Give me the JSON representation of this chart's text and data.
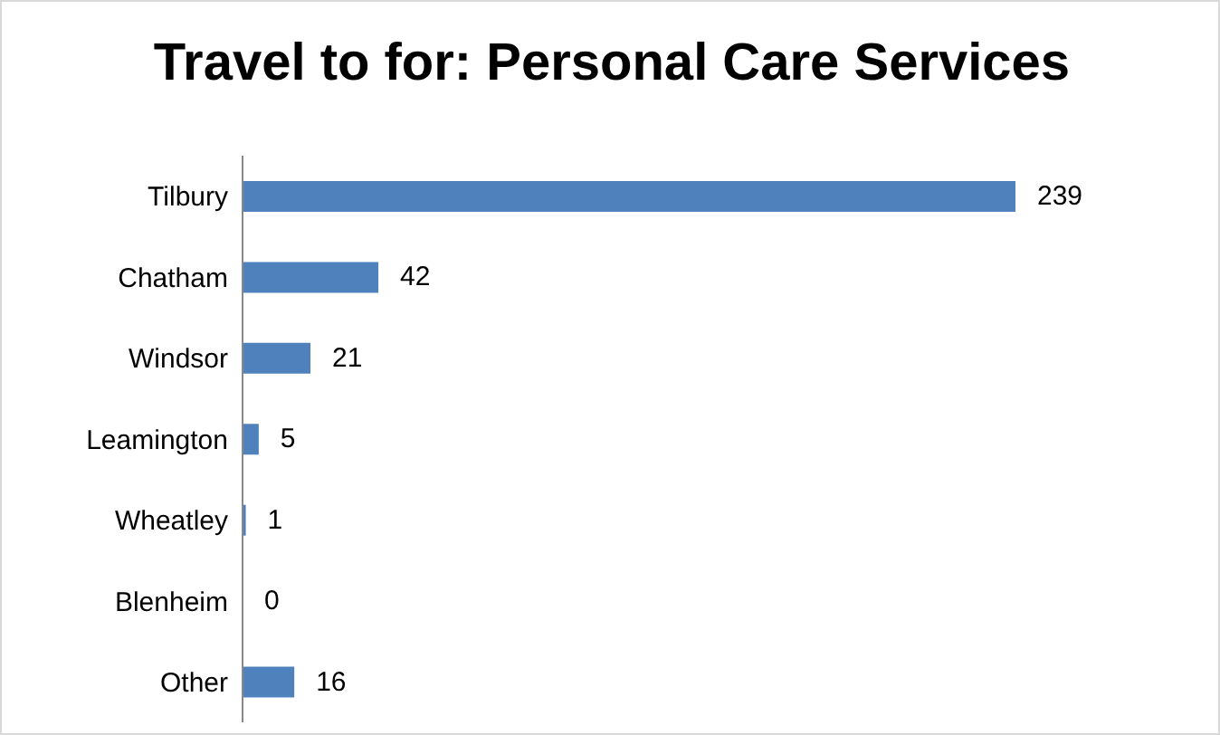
{
  "chart_data": {
    "type": "bar",
    "orientation": "horizontal",
    "title": "Travel to for: Personal Care Services",
    "categories": [
      "Tilbury",
      "Chatham",
      "Windsor",
      "Leamington",
      "Wheatley",
      "Blenheim",
      "Other"
    ],
    "values": [
      239,
      42,
      21,
      5,
      1,
      0,
      16
    ],
    "color": "#4f81bd",
    "data_labels": true,
    "tick_labels": "y"
  }
}
